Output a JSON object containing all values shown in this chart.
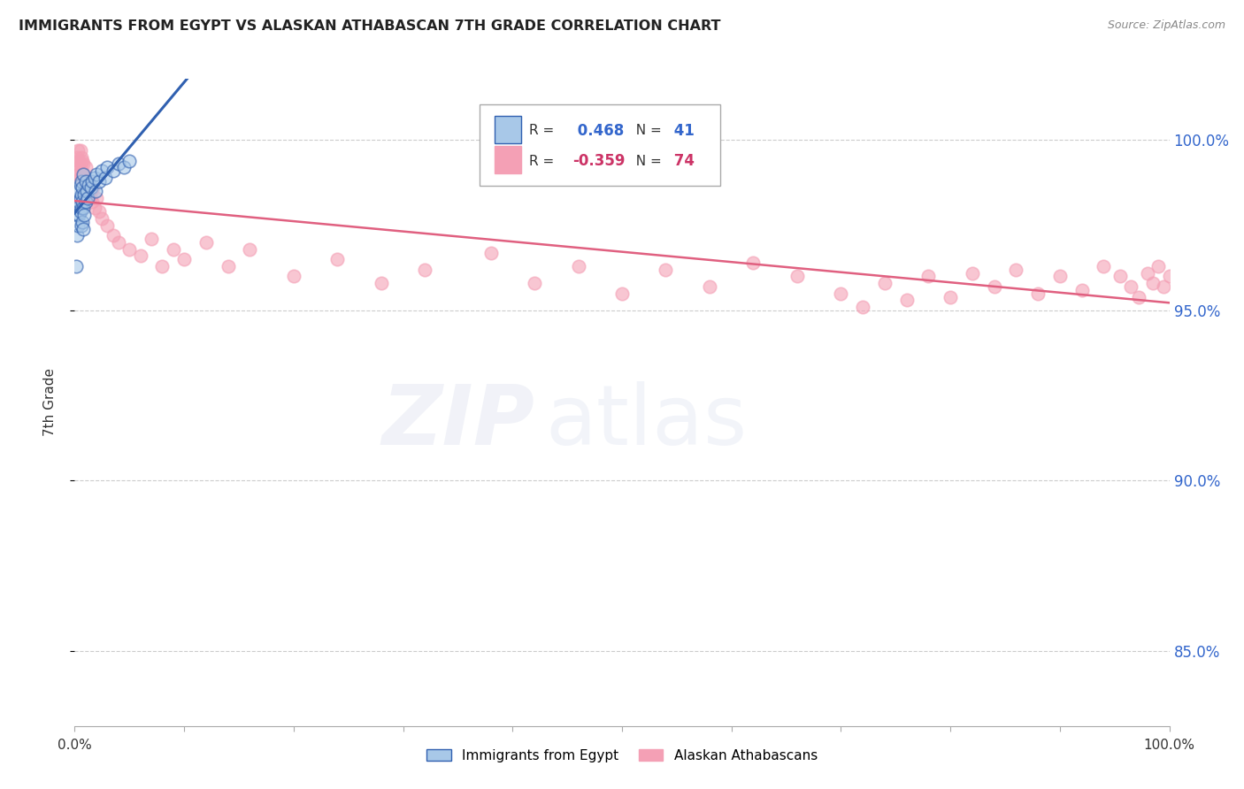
{
  "title": "IMMIGRANTS FROM EGYPT VS ALASKAN ATHABASCAN 7TH GRADE CORRELATION CHART",
  "source": "Source: ZipAtlas.com",
  "ylabel": "7th Grade",
  "r_egypt": 0.468,
  "n_egypt": 41,
  "r_athabascan": -0.359,
  "n_athabascan": 74,
  "ytick_labels": [
    "85.0%",
    "90.0%",
    "95.0%",
    "100.0%"
  ],
  "ytick_values": [
    0.85,
    0.9,
    0.95,
    1.0
  ],
  "xlim": [
    0.0,
    1.0
  ],
  "ylim": [
    0.828,
    1.018
  ],
  "color_egypt": "#a8c8e8",
  "color_athabascan": "#f4a0b5",
  "line_color_egypt": "#3060b0",
  "line_color_athabascan": "#e06080",
  "egypt_x": [
    0.001,
    0.002,
    0.002,
    0.003,
    0.003,
    0.003,
    0.004,
    0.004,
    0.005,
    0.005,
    0.005,
    0.006,
    0.006,
    0.006,
    0.006,
    0.007,
    0.007,
    0.007,
    0.008,
    0.008,
    0.008,
    0.009,
    0.009,
    0.01,
    0.01,
    0.011,
    0.012,
    0.013,
    0.015,
    0.016,
    0.018,
    0.019,
    0.02,
    0.022,
    0.025,
    0.028,
    0.03,
    0.035,
    0.04,
    0.045,
    0.05
  ],
  "egypt_y": [
    0.963,
    0.972,
    0.978,
    0.975,
    0.98,
    0.985,
    0.978,
    0.982,
    0.979,
    0.983,
    0.987,
    0.975,
    0.98,
    0.984,
    0.988,
    0.976,
    0.982,
    0.986,
    0.974,
    0.98,
    0.99,
    0.978,
    0.984,
    0.982,
    0.988,
    0.985,
    0.983,
    0.987,
    0.986,
    0.988,
    0.989,
    0.985,
    0.99,
    0.988,
    0.991,
    0.989,
    0.992,
    0.991,
    0.993,
    0.992,
    0.994
  ],
  "athabascan_x": [
    0.001,
    0.002,
    0.003,
    0.003,
    0.004,
    0.004,
    0.005,
    0.005,
    0.005,
    0.006,
    0.006,
    0.007,
    0.007,
    0.008,
    0.008,
    0.009,
    0.01,
    0.01,
    0.011,
    0.012,
    0.013,
    0.014,
    0.015,
    0.016,
    0.017,
    0.018,
    0.02,
    0.022,
    0.025,
    0.03,
    0.035,
    0.04,
    0.05,
    0.06,
    0.07,
    0.08,
    0.09,
    0.1,
    0.12,
    0.14,
    0.16,
    0.2,
    0.24,
    0.28,
    0.32,
    0.38,
    0.42,
    0.46,
    0.5,
    0.54,
    0.58,
    0.62,
    0.66,
    0.7,
    0.72,
    0.74,
    0.76,
    0.78,
    0.8,
    0.82,
    0.84,
    0.86,
    0.88,
    0.9,
    0.92,
    0.94,
    0.955,
    0.965,
    0.972,
    0.98,
    0.985,
    0.99,
    0.995,
    1.0
  ],
  "athabascan_y": [
    0.993,
    0.995,
    0.99,
    0.997,
    0.991,
    0.994,
    0.989,
    0.993,
    0.997,
    0.991,
    0.995,
    0.99,
    0.994,
    0.988,
    0.993,
    0.989,
    0.985,
    0.992,
    0.987,
    0.984,
    0.988,
    0.983,
    0.985,
    0.982,
    0.986,
    0.98,
    0.983,
    0.979,
    0.977,
    0.975,
    0.972,
    0.97,
    0.968,
    0.966,
    0.971,
    0.963,
    0.968,
    0.965,
    0.97,
    0.963,
    0.968,
    0.96,
    0.965,
    0.958,
    0.962,
    0.967,
    0.958,
    0.963,
    0.955,
    0.962,
    0.957,
    0.964,
    0.96,
    0.955,
    0.951,
    0.958,
    0.953,
    0.96,
    0.954,
    0.961,
    0.957,
    0.962,
    0.955,
    0.96,
    0.956,
    0.963,
    0.96,
    0.957,
    0.954,
    0.961,
    0.958,
    0.963,
    0.957,
    0.96
  ],
  "background_color": "#ffffff"
}
